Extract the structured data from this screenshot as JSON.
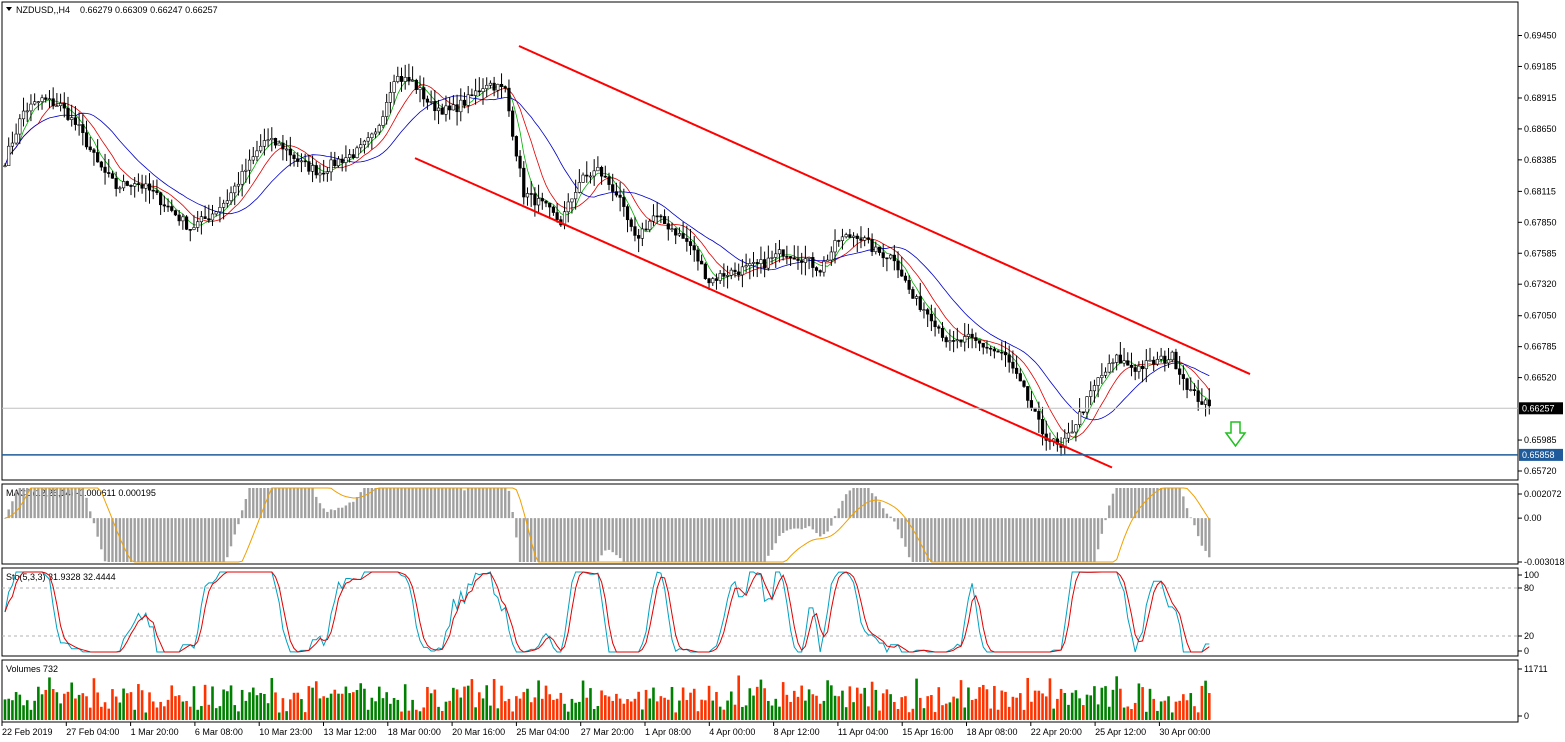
{
  "header": {
    "symbol": "NZDUSD,,H4",
    "ohlc": "0.66279 0.66309 0.66247 0.66257"
  },
  "chart_data": {
    "type": "candlestick",
    "symbol": "NZDUSD",
    "timeframe": "H4",
    "price_axis": {
      "ticks": [
        "0.69450",
        "0.69185",
        "0.68915",
        "0.68650",
        "0.68385",
        "0.68115",
        "0.67850",
        "0.67585",
        "0.67320",
        "0.67050",
        "0.66785",
        "0.66520",
        "0.65985",
        "0.65720"
      ],
      "range": [
        0.6566,
        0.696
      ]
    },
    "current_price": {
      "label": "0.66257",
      "value": 0.66257
    },
    "support_level": {
      "label": "0.65858",
      "value": 0.65858
    },
    "time_labels": [
      "22 Feb 2019",
      "27 Feb 04:00",
      "1 Mar 20:00",
      "6 Mar 08:00",
      "10 Mar 23:00",
      "13 Mar 12:00",
      "18 Mar 00:00",
      "20 Mar 16:00",
      "25 Mar 04:00",
      "27 Mar 20:00",
      "1 Apr 08:00",
      "4 Apr 00:00",
      "8 Apr 12:00",
      "11 Apr 04:00",
      "15 Apr 16:00",
      "18 Apr 08:00",
      "22 Apr 20:00",
      "25 Apr 12:00",
      "30 Apr 00:00"
    ],
    "close_path": [
      [
        0,
        0.6838
      ],
      [
        5,
        0.688
      ],
      [
        10,
        0.689
      ],
      [
        15,
        0.6885
      ],
      [
        20,
        0.6865
      ],
      [
        25,
        0.6835
      ],
      [
        30,
        0.6815
      ],
      [
        35,
        0.682
      ],
      [
        40,
        0.681
      ],
      [
        45,
        0.6795
      ],
      [
        50,
        0.678
      ],
      [
        55,
        0.679
      ],
      [
        60,
        0.6805
      ],
      [
        65,
        0.683
      ],
      [
        70,
        0.6855
      ],
      [
        75,
        0.685
      ],
      [
        80,
        0.6835
      ],
      [
        85,
        0.6828
      ],
      [
        90,
        0.6838
      ],
      [
        95,
        0.6845
      ],
      [
        100,
        0.686
      ],
      [
        105,
        0.691
      ],
      [
        110,
        0.6905
      ],
      [
        115,
        0.6885
      ],
      [
        120,
        0.688
      ],
      [
        125,
        0.689
      ],
      [
        130,
        0.6905
      ],
      [
        135,
        0.6898
      ],
      [
        140,
        0.681
      ],
      [
        145,
        0.68
      ],
      [
        150,
        0.6785
      ],
      [
        155,
        0.682
      ],
      [
        160,
        0.683
      ],
      [
        165,
        0.681
      ],
      [
        170,
        0.677
      ],
      [
        175,
        0.679
      ],
      [
        180,
        0.678
      ],
      [
        185,
        0.6765
      ],
      [
        190,
        0.6735
      ],
      [
        195,
        0.6742
      ],
      [
        200,
        0.6745
      ],
      [
        205,
        0.675
      ],
      [
        210,
        0.676
      ],
      [
        215,
        0.6755
      ],
      [
        220,
        0.6745
      ],
      [
        225,
        0.677
      ],
      [
        230,
        0.6775
      ],
      [
        235,
        0.676
      ],
      [
        240,
        0.6755
      ],
      [
        245,
        0.672
      ],
      [
        250,
        0.6705
      ],
      [
        255,
        0.668
      ],
      [
        260,
        0.6685
      ],
      [
        265,
        0.6678
      ],
      [
        270,
        0.667
      ],
      [
        275,
        0.664
      ],
      [
        280,
        0.6605
      ],
      [
        285,
        0.659
      ],
      [
        290,
        0.662
      ],
      [
        295,
        0.665
      ],
      [
        300,
        0.6668
      ],
      [
        305,
        0.666
      ],
      [
        310,
        0.6665
      ],
      [
        315,
        0.667
      ],
      [
        320,
        0.664
      ],
      [
        325,
        0.6626
      ]
    ],
    "channel_upper": [
      [
        0.6936,
        0.6655
      ]
    ],
    "channel_lower": [
      [
        0.684,
        0.6575
      ]
    ],
    "forecast_arrow": "down",
    "macd": {
      "label": "MACD(12,26,14) -0.000611 0.000195",
      "ticks": [
        "0.002072",
        "0.00",
        "-0.003018"
      ],
      "range": [
        -0.003018,
        0.002072
      ]
    },
    "stochastic": {
      "label": "Sto(5,3,3) 31.9328 32.4444",
      "ticks": [
        "100",
        "80",
        "20",
        "0"
      ],
      "levels": [
        80,
        20
      ]
    },
    "volumes": {
      "label": "Volumes 732",
      "ticks": [
        "11711",
        "0"
      ],
      "max": 11711
    },
    "colors": {
      "bull": "#000000",
      "bear": "#000000",
      "channel": "#ff0000",
      "ma_green": "#00b000",
      "ma_red": "#e00000",
      "ma_blue": "#0000c8",
      "support": "#1f5b9a",
      "macd_hist": "#a0a0a0",
      "macd_signal": "#f0a000",
      "stoch_main": "#00a0c0",
      "stoch_signal": "#e00000",
      "vol_up": "#008000",
      "vol_down": "#ff3300",
      "arrow": "#20c020"
    }
  }
}
